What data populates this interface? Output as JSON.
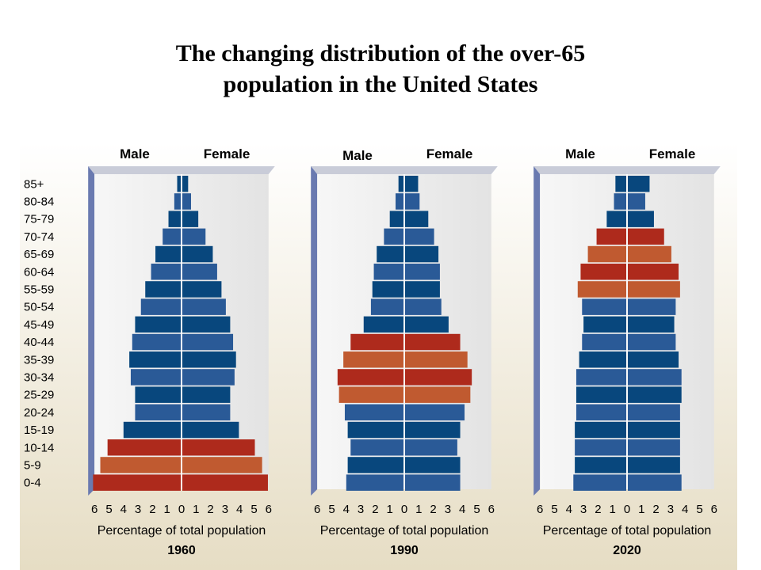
{
  "title": {
    "line1": "The changing distribution of the over-65",
    "line2": "population in the United States"
  },
  "colors": {
    "blue": "#2a5a97",
    "blue_alt": "#08477d",
    "red": "#ae2a1c",
    "orange": "#c05a30",
    "panel": "#eeeeee",
    "background": "#ece5d2"
  },
  "chart_data": [
    {
      "type": "bar",
      "orientation": "horizontal",
      "layout": "population-pyramid",
      "year": "1960",
      "xlabel": "Percentage of total population",
      "side_labels": [
        "Male",
        "Female"
      ],
      "categories": [
        "85+",
        "80-84",
        "75-79",
        "70-74",
        "65-69",
        "60-64",
        "55-59",
        "50-54",
        "45-49",
        "40-44",
        "35-39",
        "30-34",
        "25-29",
        "20-24",
        "15-19",
        "10-14",
        "5-9",
        "0-4"
      ],
      "ticks": [
        "6",
        "5",
        "4",
        "3",
        "2",
        "1",
        "0",
        "1",
        "2",
        "3",
        "4",
        "5",
        "6"
      ],
      "xlim": [
        -6,
        6
      ],
      "series": [
        {
          "name": "Male",
          "values": [
            0.3,
            0.5,
            0.9,
            1.3,
            1.8,
            2.1,
            2.5,
            2.8,
            3.2,
            3.4,
            3.6,
            3.5,
            3.2,
            3.2,
            4.0,
            5.1,
            5.6,
            6.1
          ]
        },
        {
          "name": "Female",
          "values": [
            0.4,
            0.6,
            1.1,
            1.6,
            2.1,
            2.4,
            2.7,
            3.0,
            3.3,
            3.5,
            3.7,
            3.6,
            3.3,
            3.3,
            3.9,
            5.0,
            5.5,
            5.9
          ]
        }
      ],
      "highlight": [
        "orange",
        "red",
        "orange",
        "red"
      ]
    },
    {
      "type": "bar",
      "orientation": "horizontal",
      "layout": "population-pyramid",
      "year": "1990",
      "xlabel": "Percentage of total population",
      "side_labels": [
        "Male",
        "Female"
      ],
      "categories": [
        "85+",
        "80-84",
        "75-79",
        "70-74",
        "65-69",
        "60-64",
        "55-59",
        "50-54",
        "45-49",
        "40-44",
        "35-39",
        "30-34",
        "25-29",
        "20-24",
        "15-19",
        "10-14",
        "5-9",
        "0-4"
      ],
      "ticks": [
        "6",
        "5",
        "4",
        "3",
        "2",
        "1",
        "0",
        "1",
        "2",
        "3",
        "4",
        "5",
        "6"
      ],
      "xlim": [
        -6,
        6
      ],
      "series": [
        {
          "name": "Male",
          "values": [
            0.4,
            0.6,
            1.0,
            1.4,
            1.9,
            2.1,
            2.2,
            2.3,
            2.8,
            3.7,
            4.2,
            4.6,
            4.5,
            4.1,
            3.9,
            3.7,
            3.9,
            4.0
          ]
        },
        {
          "name": "Female",
          "values": [
            0.9,
            1.0,
            1.6,
            2.0,
            2.3,
            2.4,
            2.4,
            2.5,
            3.0,
            3.8,
            4.3,
            4.6,
            4.5,
            4.1,
            3.8,
            3.6,
            3.8,
            3.8
          ]
        }
      ]
    },
    {
      "type": "bar",
      "orientation": "horizontal",
      "layout": "population-pyramid",
      "year": "2020",
      "xlabel": "Percentage of total population",
      "side_labels": [
        "Male",
        "Female"
      ],
      "categories": [
        "85+",
        "80-84",
        "75-79",
        "70-74",
        "65-69",
        "60-64",
        "55-59",
        "50-54",
        "45-49",
        "40-44",
        "35-39",
        "30-34",
        "25-29",
        "20-24",
        "15-19",
        "10-14",
        "5-9",
        "0-4"
      ],
      "ticks": [
        "6",
        "5",
        "4",
        "3",
        "2",
        "1",
        "0",
        "1",
        "2",
        "3",
        "4",
        "5",
        "6"
      ],
      "xlim": [
        -6,
        6
      ],
      "series": [
        {
          "name": "Male",
          "values": [
            0.8,
            0.9,
            1.4,
            2.1,
            2.7,
            3.2,
            3.4,
            3.1,
            3.0,
            3.1,
            3.3,
            3.5,
            3.5,
            3.5,
            3.6,
            3.6,
            3.6,
            3.7
          ]
        },
        {
          "name": "Female",
          "values": [
            1.5,
            1.2,
            1.8,
            2.5,
            3.0,
            3.5,
            3.6,
            3.3,
            3.2,
            3.3,
            3.5,
            3.7,
            3.7,
            3.6,
            3.6,
            3.6,
            3.6,
            3.7
          ]
        }
      ]
    }
  ]
}
